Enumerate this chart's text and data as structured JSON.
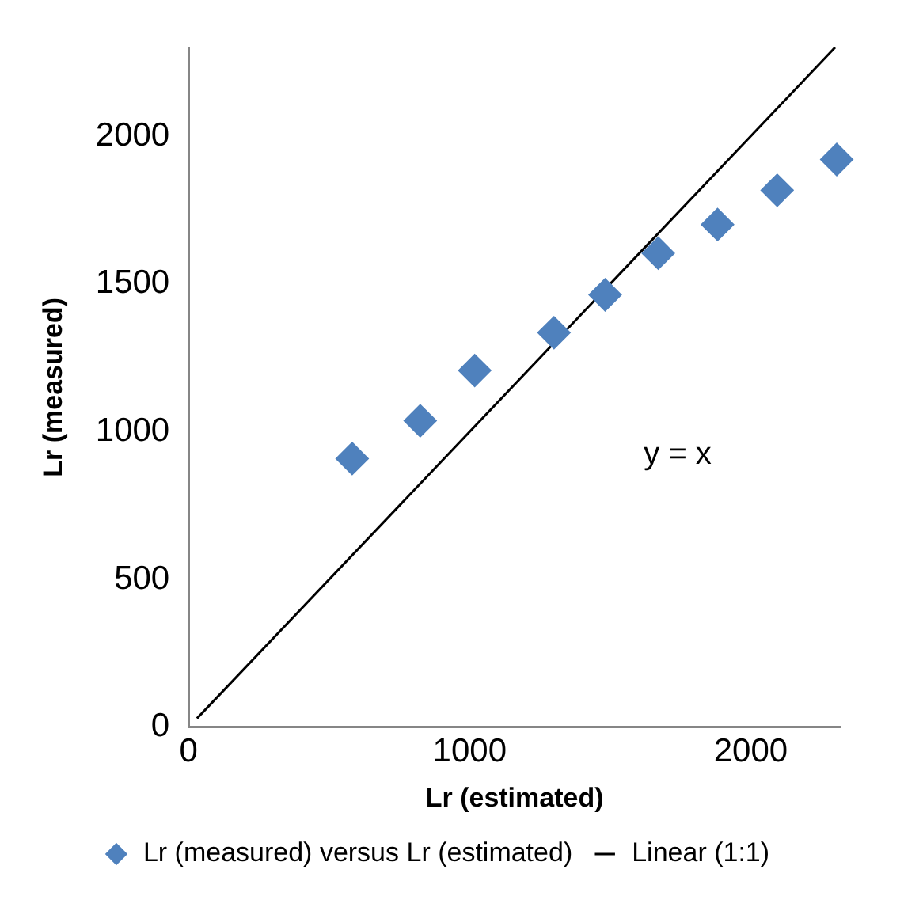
{
  "chart_data": {
    "type": "scatter",
    "xlabel": "Lr (estimated)",
    "ylabel": "Lr (measured)",
    "xlim": [
      0,
      2320
    ],
    "ylim": [
      0,
      2300
    ],
    "xticks": [
      0,
      1000,
      2000
    ],
    "yticks": [
      0,
      500,
      1000,
      1500,
      2000
    ],
    "grid": false,
    "legend": "bottom",
    "series": [
      {
        "name": "Lr (measured) versus Lr (estimated)",
        "color": "#4f81bd",
        "marker": "diamond",
        "x": [
          582,
          824,
          1018,
          1300,
          1482,
          1671,
          1882,
          2094,
          2306
        ],
        "values": [
          909,
          1037,
          1207,
          1335,
          1463,
          1604,
          1701,
          1817,
          1921
        ]
      },
      {
        "name": "Linear (1:1)",
        "type": "line",
        "color": "#000000",
        "marker": "none",
        "line_style": "solid",
        "x": [
          30,
          2300
        ],
        "values": [
          30,
          2300
        ]
      }
    ],
    "annotations": [
      "y = x"
    ]
  }
}
